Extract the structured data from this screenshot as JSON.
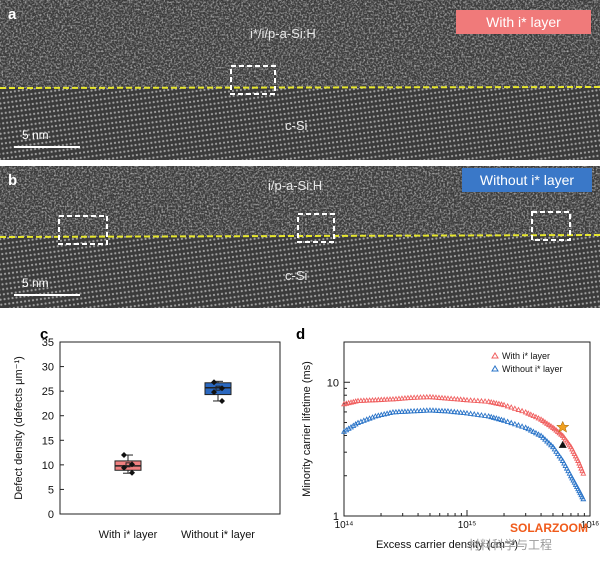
{
  "panel_a": {
    "label": "a",
    "top_layer": "i*/i/p-a-Si:H",
    "bottom_layer": "c-Si",
    "badge": "With i* layer",
    "badge_color": "#f07a7a",
    "scale": "5 nm"
  },
  "panel_b": {
    "label": "b",
    "top_layer": "i/p-a-Si:H",
    "bottom_layer": "c-Si",
    "badge": "Without i* layer",
    "badge_color": "#3a78c8",
    "scale": "5 nm"
  },
  "interface_color": "#e6e62e",
  "panel_c": {
    "label": "c",
    "ylabel": "Defect density (defects μm⁻¹)",
    "yticks": [
      "0",
      "5",
      "10",
      "15",
      "20",
      "25",
      "30",
      "35"
    ],
    "categories": [
      "With i* layer",
      "Without i* layer"
    ]
  },
  "panel_d": {
    "label": "d",
    "ylabel": "Minority carrier lifetime (ms)",
    "xlabel": "Excess carrier density (cm⁻³)",
    "ytick_labels": [
      "1",
      "10"
    ],
    "xtick_labels": [
      "10¹⁴",
      "10¹⁵",
      "10¹⁶"
    ],
    "legend": [
      "With i* layer",
      "Without i* layer"
    ]
  },
  "watermark": {
    "brand": "SOLARZOOM",
    "text": "材料科学与工程",
    "brand_color": "#f05a1a"
  },
  "chart_data": [
    {
      "type": "box",
      "ylabel": "Defect density (defects μm⁻¹)",
      "ylim": [
        0,
        35
      ],
      "categories": [
        "With i* layer",
        "Without i* layer"
      ],
      "series": [
        {
          "name": "With i* layer",
          "color": "#f08080",
          "min": 8.3,
          "q1": 8.9,
          "median": 9.8,
          "q3": 10.8,
          "max": 12.0,
          "mean": 10.0,
          "points": [
            12.0,
            10.1,
            9.4,
            8.4
          ]
        },
        {
          "name": "Without i* layer",
          "color": "#2a68c0",
          "min": 23.0,
          "q1": 24.3,
          "median": 25.7,
          "q3": 26.7,
          "max": 27.0,
          "mean": 25.6,
          "points": [
            26.8,
            25.6,
            24.8,
            23.0
          ]
        }
      ]
    },
    {
      "type": "scatter",
      "xlabel": "Excess carrier density (cm⁻³)",
      "ylabel": "Minority carrier lifetime (ms)",
      "xscale": "log",
      "yscale": "log",
      "xlim": [
        100000000000000.0,
        1e+16
      ],
      "ylim": [
        1,
        20
      ],
      "series": [
        {
          "name": "With i* layer",
          "color": "#f06060",
          "x": [
            100000000000000.0,
            130000000000000.0,
            180000000000000.0,
            250000000000000.0,
            350000000000000.0,
            500000000000000.0,
            700000000000000.0,
            1000000000000000.0,
            1500000000000000.0,
            2000000000000000.0,
            3000000000000000.0,
            4000000000000000.0,
            5000000000000000.0,
            6000000000000000.0,
            7000000000000000.0,
            8000000000000000.0,
            9000000000000000.0
          ],
          "y": [
            6.9,
            7.3,
            7.4,
            7.5,
            7.7,
            7.8,
            7.6,
            7.4,
            7.2,
            6.8,
            6.0,
            5.3,
            4.6,
            4.0,
            3.3,
            2.6,
            2.0
          ]
        },
        {
          "name": "Without i* layer",
          "color": "#2a74c8",
          "x": [
            100000000000000.0,
            130000000000000.0,
            180000000000000.0,
            250000000000000.0,
            350000000000000.0,
            500000000000000.0,
            700000000000000.0,
            1000000000000000.0,
            1500000000000000.0,
            2000000000000000.0,
            3000000000000000.0,
            4000000000000000.0,
            5000000000000000.0,
            6000000000000000.0,
            7000000000000000.0,
            8000000000000000.0,
            9000000000000000.0
          ],
          "y": [
            4.3,
            5.0,
            5.6,
            6.0,
            6.1,
            6.2,
            6.1,
            5.9,
            5.6,
            5.2,
            4.6,
            4.0,
            3.3,
            2.6,
            2.0,
            1.6,
            1.3
          ]
        }
      ]
    }
  ]
}
